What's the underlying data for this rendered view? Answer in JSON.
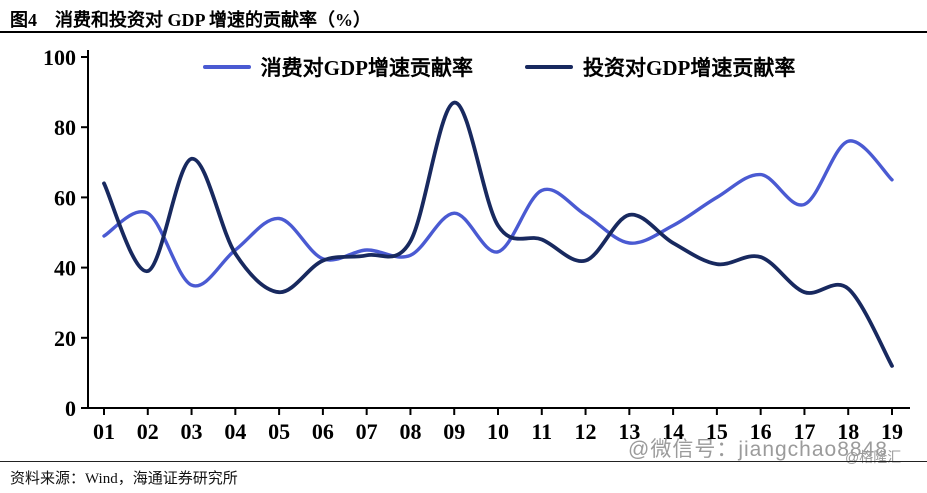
{
  "header": {
    "figure_label": "图4",
    "title": "消费和投资对 GDP 增速的贡献率（%）"
  },
  "footer": {
    "source": "资料来源：Wind，海通证券研究所"
  },
  "watermarks": {
    "wechat": "@微信号：jiangchao8848",
    "gelonghui": "@格隆汇"
  },
  "chart_data": {
    "type": "line",
    "title": "图4 消费和投资对 GDP 增速的贡献率（%）",
    "xlabel": "",
    "ylabel": "",
    "grid": false,
    "legend_position": "top",
    "ylim": [
      0,
      100
    ],
    "yticks": [
      0,
      20,
      40,
      60,
      80,
      100
    ],
    "x": [
      "01",
      "02",
      "03",
      "04",
      "05",
      "06",
      "07",
      "08",
      "09",
      "10",
      "11",
      "12",
      "13",
      "14",
      "15",
      "16",
      "17",
      "18",
      "19"
    ],
    "series": [
      {
        "name": "消费对GDP增速贡献率",
        "color": "#4a5ad2",
        "values": [
          49,
          55.5,
          35,
          45,
          54,
          42.5,
          45,
          43.5,
          55.5,
          44.5,
          62,
          55,
          47,
          52,
          60,
          66.5,
          58,
          76,
          65
        ]
      },
      {
        "name": "投资对GDP增速贡献率",
        "color": "#18295f",
        "values": [
          64,
          39,
          71,
          44,
          33,
          42,
          43.5,
          47.5,
          87,
          52,
          48,
          42,
          55,
          47,
          41,
          43,
          33,
          34,
          12
        ]
      }
    ]
  }
}
